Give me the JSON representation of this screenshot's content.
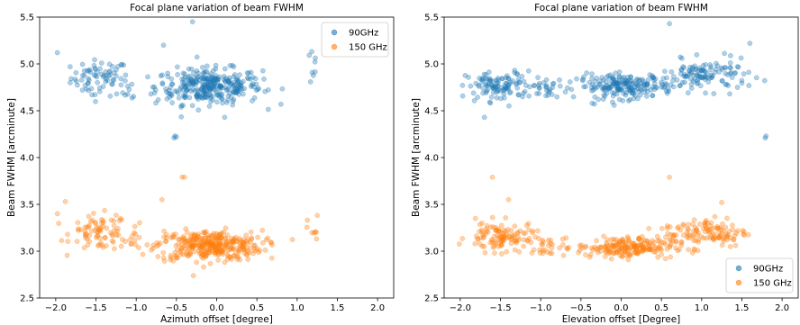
{
  "chart_data": [
    {
      "type": "scatter",
      "title": "Focal plane variation of beam FWHM",
      "xlabel": "Azimuth offset [degree]",
      "ylabel": "Beam FWHM [arcminute]",
      "xlim": [
        -2.2,
        2.2
      ],
      "ylim": [
        2.5,
        5.5
      ],
      "xticks": [
        "−2.0",
        "−1.5",
        "−1.0",
        "−0.5",
        "0.0",
        "0.5",
        "1.0",
        "1.5",
        "2.0"
      ],
      "xtick_values": [
        -2.0,
        -1.5,
        -1.0,
        -0.5,
        0.0,
        0.5,
        1.0,
        1.5,
        2.0
      ],
      "yticks": [
        "2.5",
        "3.0",
        "3.5",
        "4.0",
        "4.5",
        "5.0",
        "5.5"
      ],
      "ytick_values": [
        2.5,
        3.0,
        3.5,
        4.0,
        4.5,
        5.0,
        5.5
      ],
      "grid": false,
      "legend_position": "top-right",
      "series": [
        {
          "name": "90GHz",
          "color": "#1f77b4",
          "clusters": [
            {
              "x_center": -1.45,
              "x_spread": 0.3,
              "y_center": 4.85,
              "y_spread": 0.12,
              "count": 70
            },
            {
              "x_center": -1.1,
              "x_spread": 0.1,
              "y_center": 4.7,
              "y_spread": 0.06,
              "count": 8
            },
            {
              "x_center": -0.1,
              "x_spread": 0.55,
              "y_center": 4.76,
              "y_spread": 0.12,
              "count": 320
            },
            {
              "x_center": 1.2,
              "x_spread": 0.06,
              "y_center": 4.95,
              "y_spread": 0.12,
              "count": 8
            }
          ],
          "points": [
            {
              "x": -0.52,
              "y": 4.23
            },
            {
              "x": -0.53,
              "y": 4.21
            },
            {
              "x": -0.5,
              "y": 4.22
            },
            {
              "x": -1.98,
              "y": 5.12
            },
            {
              "x": -0.66,
              "y": 5.2
            },
            {
              "x": -0.3,
              "y": 5.45
            },
            {
              "x": 0.1,
              "y": 4.43
            },
            {
              "x": -1.55,
              "y": 4.67
            }
          ]
        },
        {
          "name": "150 GHz",
          "color": "#ff7f0e",
          "clusters": [
            {
              "x_center": -1.45,
              "x_spread": 0.3,
              "y_center": 3.2,
              "y_spread": 0.12,
              "count": 80
            },
            {
              "x_center": -1.0,
              "x_spread": 0.12,
              "y_center": 3.15,
              "y_spread": 0.08,
              "count": 10
            },
            {
              "x_center": -0.1,
              "x_spread": 0.55,
              "y_center": 3.06,
              "y_spread": 0.1,
              "count": 340
            },
            {
              "x_center": 1.2,
              "x_spread": 0.06,
              "y_center": 3.22,
              "y_spread": 0.1,
              "count": 8
            }
          ],
          "points": [
            {
              "x": -0.43,
              "y": 3.79
            },
            {
              "x": -0.4,
              "y": 3.79
            },
            {
              "x": -0.68,
              "y": 3.55
            },
            {
              "x": -1.88,
              "y": 3.53
            },
            {
              "x": -1.98,
              "y": 3.4
            }
          ]
        }
      ]
    },
    {
      "type": "scatter",
      "title": "Focal plane variation of beam FWHM",
      "xlabel": "Elevation offset [Degree]",
      "ylabel": "Beam FWHM [arcminute]",
      "xlim": [
        -2.2,
        2.2
      ],
      "ylim": [
        2.5,
        5.5
      ],
      "xticks": [
        "−2.0",
        "−1.5",
        "−1.0",
        "−0.5",
        "0.0",
        "0.5",
        "1.0",
        "1.5",
        "2.0"
      ],
      "xtick_values": [
        -2.0,
        -1.5,
        -1.0,
        -0.5,
        0.0,
        0.5,
        1.0,
        1.5,
        2.0
      ],
      "yticks": [
        "2.5",
        "3.0",
        "3.5",
        "4.0",
        "4.5",
        "5.0",
        "5.5"
      ],
      "ytick_values": [
        2.5,
        3.0,
        3.5,
        4.0,
        4.5,
        5.0,
        5.5
      ],
      "grid": false,
      "legend_position": "bottom-right",
      "series": [
        {
          "name": "90GHz",
          "color": "#1f77b4",
          "clusters": [
            {
              "x_center": -1.5,
              "x_spread": 0.35,
              "y_center": 4.76,
              "y_spread": 0.1,
              "count": 110
            },
            {
              "x_center": -0.95,
              "x_spread": 0.2,
              "y_center": 4.75,
              "y_spread": 0.06,
              "count": 25
            },
            {
              "x_center": 0.05,
              "x_spread": 0.5,
              "y_center": 4.76,
              "y_spread": 0.08,
              "count": 200
            },
            {
              "x_center": 1.05,
              "x_spread": 0.45,
              "y_center": 4.88,
              "y_spread": 0.1,
              "count": 120
            }
          ],
          "points": [
            {
              "x": 1.8,
              "y": 4.23
            },
            {
              "x": 1.79,
              "y": 4.21
            },
            {
              "x": 0.6,
              "y": 5.43
            },
            {
              "x": -1.7,
              "y": 4.43
            },
            {
              "x": 1.6,
              "y": 5.22
            }
          ]
        },
        {
          "name": "150 GHz",
          "color": "#ff7f0e",
          "clusters": [
            {
              "x_center": -1.5,
              "x_spread": 0.35,
              "y_center": 3.15,
              "y_spread": 0.1,
              "count": 110
            },
            {
              "x_center": -0.95,
              "x_spread": 0.2,
              "y_center": 3.05,
              "y_spread": 0.06,
              "count": 25
            },
            {
              "x_center": 0.05,
              "x_spread": 0.5,
              "y_center": 3.04,
              "y_spread": 0.07,
              "count": 200
            },
            {
              "x_center": 1.05,
              "x_spread": 0.45,
              "y_center": 3.2,
              "y_spread": 0.1,
              "count": 120
            }
          ],
          "points": [
            {
              "x": -1.6,
              "y": 3.79
            },
            {
              "x": 0.6,
              "y": 3.79
            },
            {
              "x": -1.4,
              "y": 3.55
            },
            {
              "x": 1.25,
              "y": 3.52
            }
          ]
        }
      ]
    }
  ]
}
